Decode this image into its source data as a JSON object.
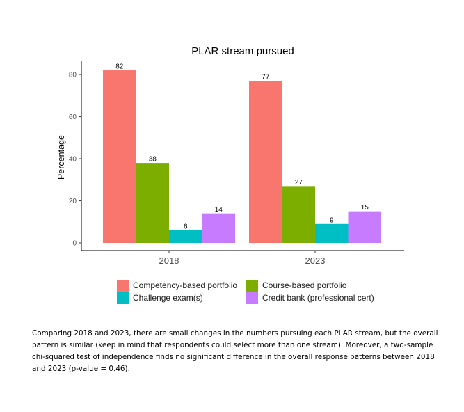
{
  "chart_data": {
    "type": "bar",
    "title": "PLAR stream pursued",
    "ylabel": "Percentage",
    "xlabel": "",
    "categories": [
      "2018",
      "2023"
    ],
    "ylim": [
      0,
      86
    ],
    "yticks": [
      0,
      20,
      40,
      60,
      80
    ],
    "grid": false,
    "legend_position": "bottom",
    "series": [
      {
        "name": "Competency-based portfolio",
        "color": "#F8766D",
        "values": [
          82,
          77
        ]
      },
      {
        "name": "Course-based portfolio",
        "color": "#7CAE00",
        "values": [
          38,
          27
        ]
      },
      {
        "name": "Challenge exam(s)",
        "color": "#00BFC4",
        "values": [
          6,
          9
        ]
      },
      {
        "name": "Credit bank (professional cert)",
        "color": "#C77CFF",
        "values": [
          14,
          15
        ]
      }
    ]
  },
  "caption": "Comparing 2018 and 2023, there are small changes in the numbers pursuing each PLAR stream, but the overall pattern is similar (keep in mind that respondents could select more than one stream). Moreover, a two-sample chi-squared test of independence finds no significant difference in the overall response patterns between 2018 and 2023 (p-value = 0.46)."
}
